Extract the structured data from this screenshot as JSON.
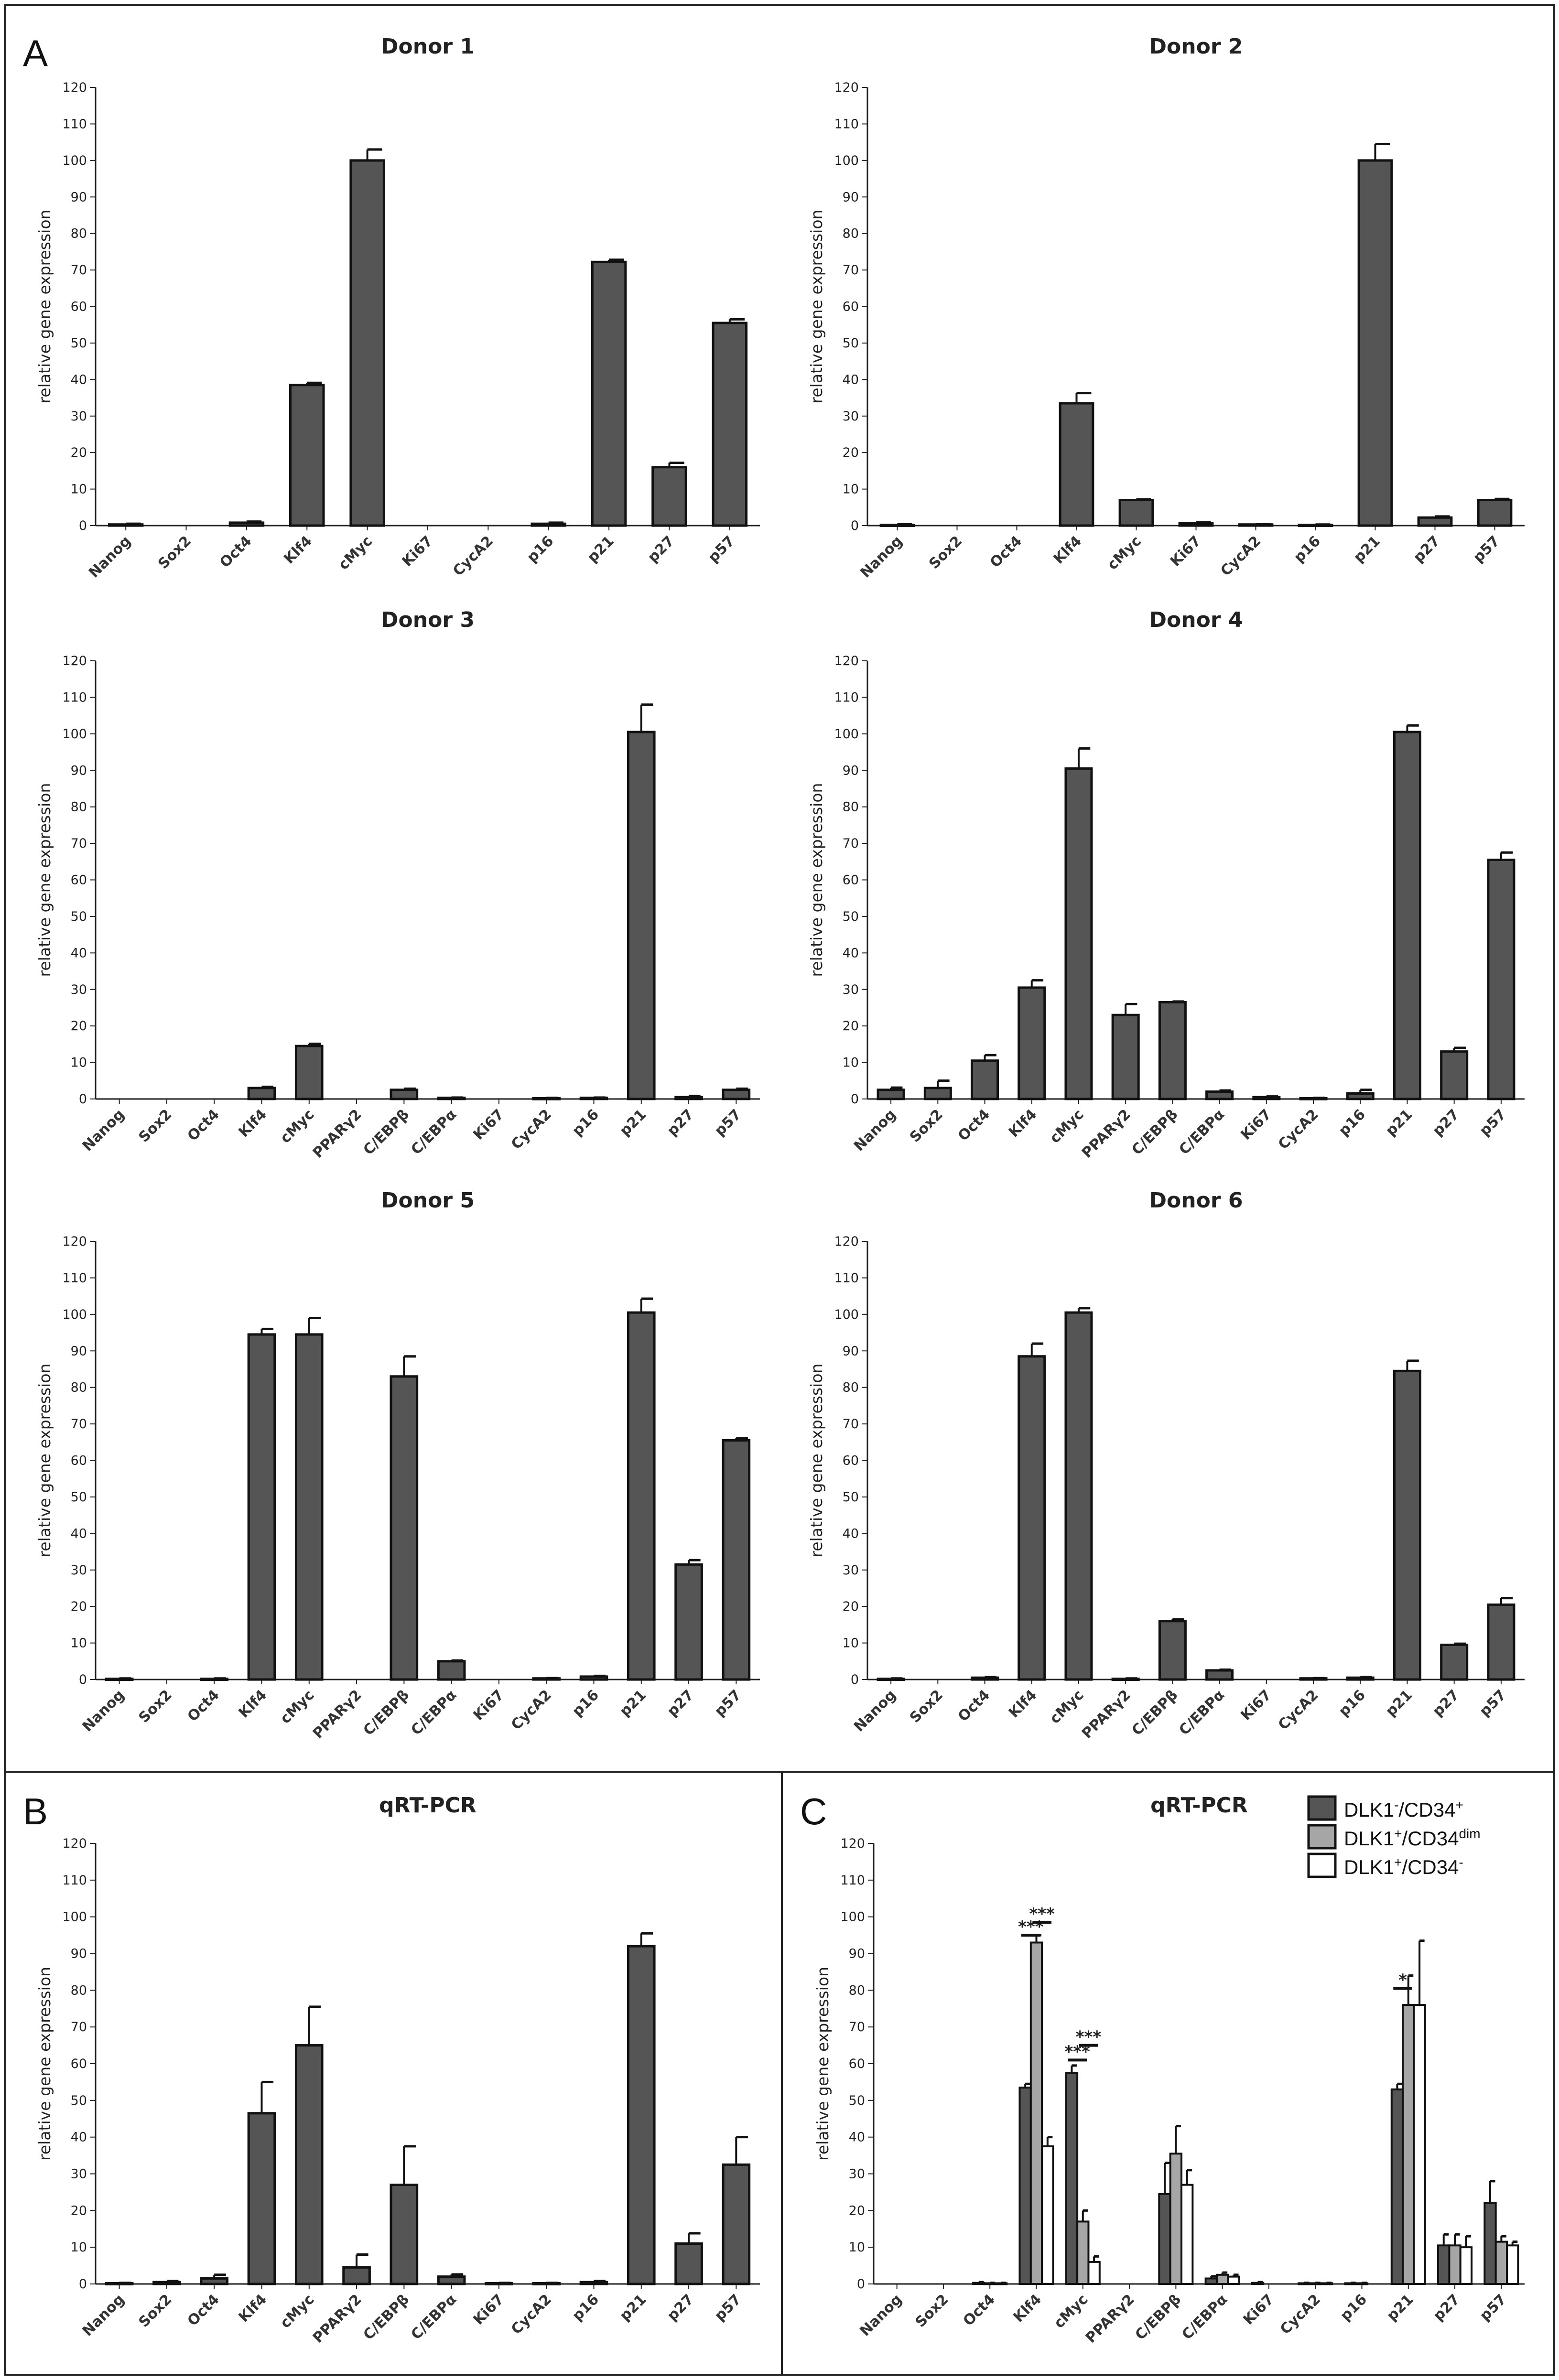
{
  "figure": {
    "panel_letters": [
      "A",
      "B",
      "C"
    ],
    "ylabel": "relative gene expression"
  },
  "colors": {
    "dark_bar": "#555555",
    "light_bar": "#a6a6a6",
    "white_bar": "#ffffff",
    "stroke": "#111111"
  },
  "chart_data": [
    {
      "id": "donor1",
      "type": "bar",
      "title": "Donor 1",
      "ylabel": "relative gene expression",
      "ylim": [
        0,
        120
      ],
      "categories": [
        "Nanog",
        "Sox2",
        "Oct4",
        "Klf4",
        "cMyc",
        "Ki67",
        "CycA2",
        "p16",
        "p21",
        "p27",
        "p57"
      ],
      "series": [
        {
          "name": "",
          "color": "dark_bar",
          "values": [
            0.3,
            0,
            0.8,
            38.5,
            100,
            0,
            0,
            0.5,
            72.2,
            16,
            55.5
          ],
          "errors": [
            0.2,
            0,
            0.3,
            0.6,
            3,
            0,
            0,
            0.3,
            0.6,
            1.2,
            1
          ]
        }
      ]
    },
    {
      "id": "donor2",
      "type": "bar",
      "title": "Donor 2",
      "ylabel": "relative gene expression",
      "ylim": [
        0,
        120
      ],
      "categories": [
        "Nanog",
        "Sox2",
        "Oct4",
        "Klf4",
        "cMyc",
        "Ki67",
        "CycA2",
        "p16",
        "p21",
        "p27",
        "p57"
      ],
      "series": [
        {
          "name": "",
          "color": "dark_bar",
          "values": [
            0.2,
            0,
            0,
            33.5,
            7,
            0.6,
            0.3,
            0.2,
            100,
            2.2,
            7
          ],
          "errors": [
            0.2,
            0,
            0,
            2.8,
            0.2,
            0.3,
            0.1,
            0.1,
            4.5,
            0.3,
            0.3
          ]
        }
      ]
    },
    {
      "id": "donor3",
      "type": "bar",
      "title": "Donor 3",
      "ylabel": "relative gene expression",
      "ylim": [
        0,
        120
      ],
      "categories": [
        "Nanog",
        "Sox2",
        "Oct4",
        "Klf4",
        "cMyc",
        "PPARγ2",
        "C/EBPβ",
        "C/EBPα",
        "Ki67",
        "CycA2",
        "p16",
        "p21",
        "p27",
        "p57"
      ],
      "series": [
        {
          "name": "",
          "color": "dark_bar",
          "values": [
            0,
            0,
            0,
            3,
            14.5,
            0,
            2.5,
            0.3,
            0,
            0.2,
            0.3,
            100.5,
            0.5,
            2.5
          ],
          "errors": [
            0,
            0,
            0,
            0.3,
            0.6,
            0,
            0.3,
            0.1,
            0,
            0.1,
            0.1,
            7.5,
            0.3,
            0.3
          ]
        }
      ]
    },
    {
      "id": "donor4",
      "type": "bar",
      "title": "Donor 4",
      "ylabel": "relative gene expression",
      "ylim": [
        0,
        120
      ],
      "categories": [
        "Nanog",
        "Sox2",
        "Oct4",
        "Klf4",
        "cMyc",
        "PPARγ2",
        "C/EBPβ",
        "C/EBPα",
        "Ki67",
        "CycA2",
        "p16",
        "p21",
        "p27",
        "p57"
      ],
      "series": [
        {
          "name": "",
          "color": "dark_bar",
          "values": [
            2.5,
            3,
            10.5,
            30.5,
            90.5,
            23,
            26.5,
            2,
            0.5,
            0.2,
            1.5,
            100.5,
            13,
            65.5
          ],
          "errors": [
            0.6,
            2,
            1.5,
            2,
            5.5,
            3,
            0.2,
            0.3,
            0.2,
            0.1,
            1,
            1.8,
            1,
            2
          ]
        }
      ]
    },
    {
      "id": "donor5",
      "type": "bar",
      "title": "Donor 5",
      "ylabel": "relative gene expression",
      "ylim": [
        0,
        120
      ],
      "categories": [
        "Nanog",
        "Sox2",
        "Oct4",
        "Klf4",
        "cMyc",
        "PPARγ2",
        "C/EBPβ",
        "C/EBPα",
        "Ki67",
        "CycA2",
        "p16",
        "p21",
        "p27",
        "p57"
      ],
      "series": [
        {
          "name": "",
          "color": "dark_bar",
          "values": [
            0.2,
            0,
            0.2,
            94.5,
            94.5,
            0,
            83,
            5,
            0,
            0.3,
            0.8,
            100.5,
            31.5,
            65.5
          ],
          "errors": [
            0.1,
            0,
            0.1,
            1.5,
            4.5,
            0,
            5.5,
            0.2,
            0,
            0.1,
            0.2,
            3.8,
            1.2,
            0.6
          ]
        }
      ]
    },
    {
      "id": "donor6",
      "type": "bar",
      "title": "Donor 6",
      "ylabel": "relative gene expression",
      "ylim": [
        0,
        120
      ],
      "categories": [
        "Nanog",
        "Sox2",
        "Oct4",
        "Klf4",
        "cMyc",
        "PPARγ2",
        "C/EBPβ",
        "C/EBPα",
        "Ki67",
        "CycA2",
        "p16",
        "p21",
        "p27",
        "p57"
      ],
      "series": [
        {
          "name": "",
          "color": "dark_bar",
          "values": [
            0.2,
            0,
            0.5,
            88.5,
            100.5,
            0.2,
            16,
            2.5,
            0,
            0.3,
            0.5,
            84.5,
            9.5,
            20.5
          ],
          "errors": [
            0.1,
            0,
            0.2,
            3.5,
            1.2,
            0.1,
            0.5,
            0.2,
            0,
            0.1,
            0.2,
            2.8,
            0.3,
            1.8
          ]
        }
      ]
    },
    {
      "id": "panelB",
      "type": "bar",
      "title": "qRT-PCR",
      "ylabel": "relative gene expression",
      "ylim": [
        0,
        120
      ],
      "categories": [
        "Nanog",
        "Sox2",
        "Oct4",
        "Klf4",
        "cMyc",
        "PPARγ2",
        "C/EBPβ",
        "C/EBPα",
        "Ki67",
        "CycA2",
        "p16",
        "p21",
        "p27",
        "p57"
      ],
      "series": [
        {
          "name": "",
          "color": "dark_bar",
          "values": [
            0.2,
            0.5,
            1.5,
            46.5,
            65,
            4.5,
            27,
            2,
            0.2,
            0.2,
            0.5,
            92,
            11,
            32.5
          ],
          "errors": [
            0.1,
            0.3,
            1,
            8.5,
            10.5,
            3.5,
            10.5,
            0.6,
            0.1,
            0.1,
            0.3,
            3.5,
            2.8,
            7.5
          ]
        }
      ]
    },
    {
      "id": "panelC",
      "type": "bar",
      "title": "qRT-PCR",
      "ylabel": "relative gene expression",
      "ylim": [
        0,
        120
      ],
      "categories": [
        "Nanog",
        "Sox2",
        "Oct4",
        "Klf4",
        "cMyc",
        "PPARγ2",
        "C/EBPβ",
        "C/EBPα",
        "Ki67",
        "CycA2",
        "p16",
        "p21",
        "p27",
        "p57"
      ],
      "series": [
        {
          "name": "DLK1",
          "name_sup": "-",
          "name_mid": "/CD34",
          "name_sup2": "+",
          "color": "dark_bar",
          "values": [
            0,
            0,
            0.3,
            53.5,
            57.5,
            0,
            24.5,
            1.5,
            0.3,
            0.2,
            0.2,
            53,
            10.5,
            22
          ],
          "errors": [
            0,
            0,
            0.2,
            1,
            2,
            0,
            8.5,
            0.6,
            0.2,
            0.1,
            0.1,
            1.5,
            3,
            6
          ]
        },
        {
          "name": "DLK1",
          "name_sup": "+",
          "name_mid": "/CD34",
          "name_sup2": "dim",
          "color": "light_bar",
          "values": [
            0,
            0,
            0.2,
            93,
            17,
            0,
            35.5,
            2.5,
            0,
            0.2,
            0.2,
            76,
            10.5,
            11.5
          ],
          "errors": [
            0,
            0,
            0.1,
            2,
            3,
            0,
            7.5,
            0.6,
            0,
            0.1,
            0.1,
            8,
            3,
            1.5
          ]
        },
        {
          "name": "DLK1",
          "name_sup": "+",
          "name_mid": "/CD34",
          "name_sup2": "-",
          "color": "white_bar",
          "values": [
            0,
            0,
            0.2,
            37.5,
            6,
            0,
            27,
            2,
            0,
            0.2,
            0,
            76,
            10,
            10.5
          ],
          "errors": [
            0,
            0,
            0.1,
            2.5,
            1.5,
            0,
            4,
            0.5,
            0,
            0.1,
            0,
            17.5,
            3,
            1
          ]
        }
      ],
      "significance": [
        {
          "label": "***",
          "category": "Klf4",
          "from": 0,
          "to": 1,
          "level": 95
        },
        {
          "label": "***",
          "category": "Klf4",
          "from": 1,
          "to": 2,
          "level": 98.5
        },
        {
          "label": "***",
          "category": "cMyc",
          "from": 0,
          "to": 1,
          "level": 61
        },
        {
          "label": "***",
          "category": "cMyc",
          "from": 1,
          "to": 2,
          "level": 65
        },
        {
          "label": "*",
          "category": "p21",
          "from": 0,
          "to": 1,
          "level": 80.5
        }
      ]
    }
  ]
}
